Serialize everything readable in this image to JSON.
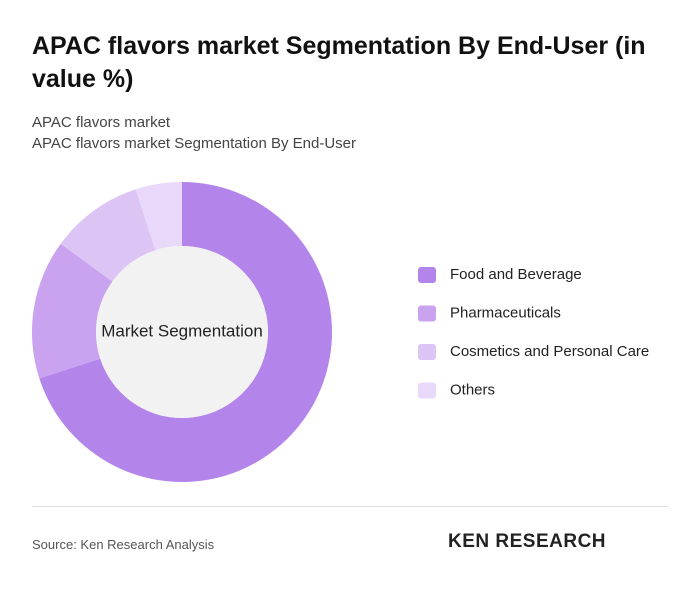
{
  "chart_data": {
    "type": "donut",
    "title": "APAC flavors market Segmentation By End-User (in value %)",
    "subtitle": "APAC flavors market",
    "subtitle2": "APAC flavors market Segmentation By End-User",
    "center_label": "Market Segmentation",
    "categories": [
      "Food and Beverage",
      "Pharmaceuticals",
      "Cosmetics and Personal Care",
      "Others"
    ],
    "values": [
      70,
      15,
      10,
      5
    ],
    "colors": [
      "#b385eb",
      "#c9a3f0",
      "#dcc4f5",
      "#e8d8f9"
    ],
    "source": "Source: Ken Research Analysis",
    "logo": "KEN RESEARCH"
  }
}
